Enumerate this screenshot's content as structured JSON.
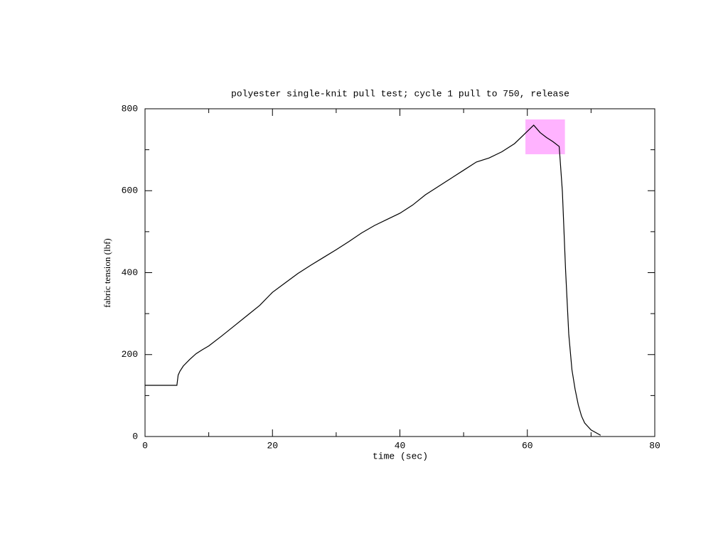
{
  "chart_data": {
    "type": "line",
    "title": "polyester single-knit pull test; cycle 1 pull to 750, release",
    "xlabel": "time (sec)",
    "ylabel": "fabric tension (lbf)",
    "x": [
      0,
      5,
      5.2,
      5.5,
      6,
      7,
      8,
      9,
      10,
      12,
      14,
      16,
      18,
      20,
      22,
      24,
      26,
      28,
      30,
      32,
      34,
      36,
      38,
      40,
      42,
      44,
      46,
      48,
      50,
      52,
      54,
      56,
      58,
      60,
      61,
      62,
      63,
      64,
      65,
      65.5,
      66,
      66.5,
      67,
      67.5,
      68,
      68.5,
      69,
      70,
      71.5
    ],
    "series": [
      {
        "color": "#000000",
        "values": [
          125,
          125,
          150,
          160,
          172,
          188,
          202,
          212,
          221,
          245,
          270,
          295,
          320,
          352,
          375,
          398,
          418,
          437,
          456,
          476,
          497,
          515,
          530,
          545,
          565,
          590,
          610,
          630,
          650,
          670,
          680,
          695,
          715,
          745,
          760,
          742,
          730,
          720,
          708,
          598,
          407,
          250,
          163,
          115,
          77,
          50,
          33,
          16,
          3
        ]
      }
    ],
    "xlim": [
      0,
      80
    ],
    "xticks": [
      0,
      20,
      40,
      60,
      80
    ],
    "xminorticks": [
      10,
      30,
      50,
      70
    ],
    "ylim": [
      0,
      800
    ],
    "yticks": [
      0,
      200,
      400,
      600,
      800
    ],
    "yminorticks": [
      100,
      300,
      500,
      700
    ],
    "highlight": {
      "x": [
        59.7,
        65.9
      ],
      "y": [
        689,
        774
      ],
      "color": "#ffb3ff"
    }
  }
}
